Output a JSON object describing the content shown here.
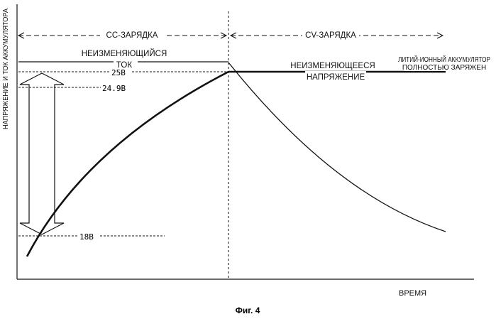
{
  "figure": {
    "caption": "Фиг. 4",
    "y_axis_label": "НАПРЯЖЕНИЕ И ТОК АККУМУЛЯТОРА",
    "x_axis_label": "ВРЕМЯ"
  },
  "phases": {
    "cc_label": "СС-ЗАРЯДКА",
    "cv_label": "CV-ЗАРЯДКА"
  },
  "annotations": {
    "constant_current_line1": "НЕИЗМЕНЯЮЩИЙСЯ",
    "constant_current_line2": "ТОК",
    "constant_voltage_line1": "НЕИЗМЕНЯЮЩЕЕСЯ",
    "constant_voltage_line2": "НАПРЯЖЕНИЕ",
    "full_charge_line1": "ЛИТИЙ-ИОННЫЙ АККУМУЛЯТОР",
    "full_charge_line2": "ПОЛНОСТЬЮ ЗАРЯЖЕН"
  },
  "voltage_levels": {
    "v25": "25В",
    "v249": "24.9В",
    "v18": "18В"
  },
  "colors": {
    "ink": "#111111",
    "background": "#ffffff"
  }
}
